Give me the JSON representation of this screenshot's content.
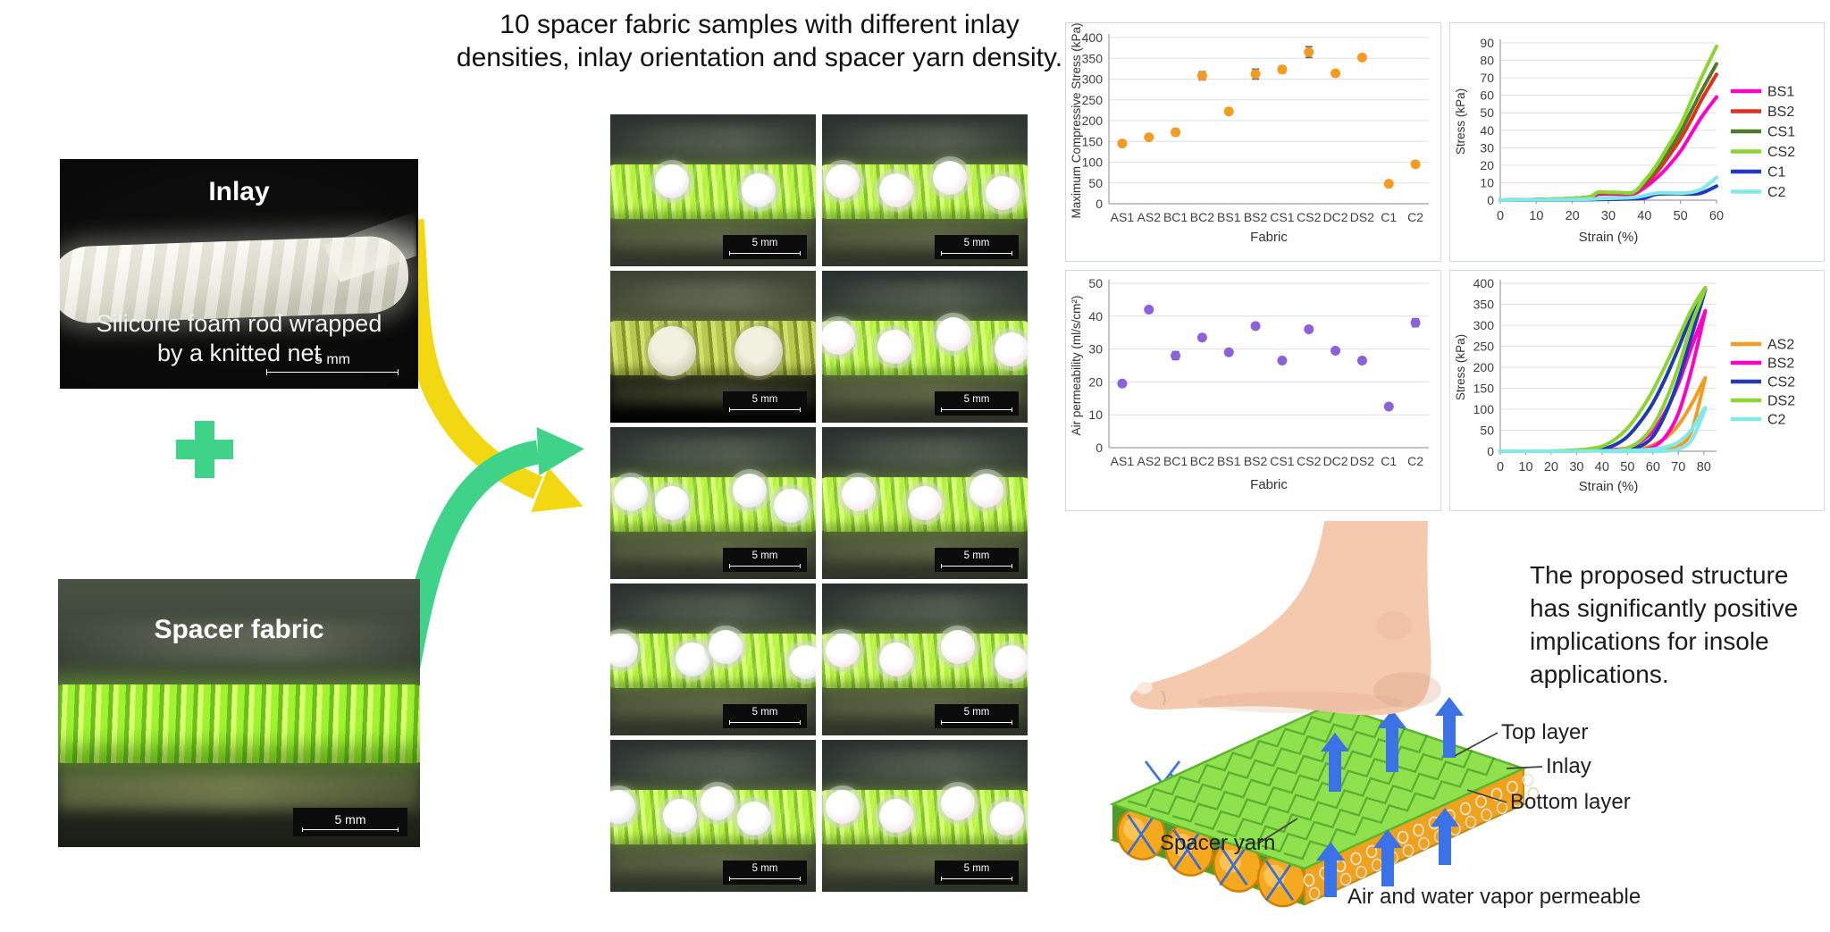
{
  "left_panel": {
    "inlay": {
      "title": "Inlay",
      "caption": "Silicone foam rod wrapped by a knitted net",
      "scale_label": "5 mm"
    },
    "spacer": {
      "title": "Spacer fabric",
      "scale_label": "5 mm"
    },
    "plus_icon": "plus"
  },
  "middle_panel": {
    "title": "10 spacer fabric samples with different inlay densities, inlay orientation and spacer yarn density.",
    "samples": [
      {
        "variant": "cross",
        "tint": "white",
        "circles": [
          0.3,
          0.72
        ],
        "scale_label": "5 mm"
      },
      {
        "variant": "cross",
        "tint": "pink",
        "circles": [
          0.1,
          0.36,
          0.62,
          0.88
        ],
        "scale_label": "5 mm"
      },
      {
        "variant": "side",
        "circles": [
          0.3,
          0.72
        ],
        "scale_label": "5 mm"
      },
      {
        "variant": "cross",
        "tint": "pink",
        "circles": [
          0.08,
          0.35,
          0.64,
          0.92
        ],
        "scale_label": "5 mm"
      },
      {
        "variant": "cross",
        "tint": "white",
        "circles": [
          0.1,
          0.3,
          0.68,
          0.88
        ],
        "scale_label": "5 mm"
      },
      {
        "variant": "cross",
        "tint": "pink",
        "circles": [
          0.18,
          0.5,
          0.8
        ],
        "scale_label": "5 mm"
      },
      {
        "variant": "cross",
        "tint": "white",
        "circles": [
          0.05,
          0.4,
          0.56,
          0.95
        ],
        "scale_label": "5 mm"
      },
      {
        "variant": "cross",
        "tint": "pink",
        "circles": [
          0.1,
          0.36,
          0.66,
          0.92
        ],
        "scale_label": "5 mm"
      },
      {
        "variant": "cross",
        "tint": "white",
        "circles": [
          0.04,
          0.34,
          0.52,
          0.7
        ],
        "scale_label": "5 mm"
      },
      {
        "variant": "cross",
        "tint": "pink",
        "circles": [
          0.1,
          0.36,
          0.66,
          0.9
        ],
        "scale_label": "5 mm"
      }
    ]
  },
  "chart_data": [
    {
      "type": "scatter",
      "ylabel": "Maximum Compressive Stress (kPa)",
      "xlabel": "Fabric",
      "ylim": [
        0,
        400
      ],
      "ytick": 50,
      "grid": true,
      "categories": [
        "AS1",
        "AS2",
        "BC1",
        "BC2",
        "BS1",
        "BS2",
        "CS1",
        "CS2",
        "DC2",
        "DS2",
        "C1",
        "C2"
      ],
      "values": [
        145,
        160,
        172,
        308,
        222,
        312,
        323,
        365,
        314,
        352,
        48,
        95
      ],
      "errors": [
        5,
        4,
        8,
        10,
        5,
        12,
        8,
        13,
        4,
        6,
        3,
        4
      ],
      "marker_color": "#f59b22",
      "error_color": "#5a6570"
    },
    {
      "type": "line",
      "ylabel": "Stress (kPa)",
      "xlabel": "Strain (%)",
      "ylim": [
        0,
        90
      ],
      "ytick": 10,
      "xlim": [
        0,
        60
      ],
      "xticks": [
        0,
        10,
        20,
        30,
        40,
        50,
        60
      ],
      "grid": true,
      "legend_position": "right",
      "x": [
        0,
        10,
        20,
        25,
        27,
        30,
        33,
        37,
        40,
        43,
        46,
        50,
        53,
        56,
        60
      ],
      "series": [
        {
          "name": "BS1",
          "color": "#ff00c8",
          "values": [
            0,
            0.3,
            0.8,
            1.5,
            3.2,
            3.5,
            3.4,
            3.6,
            7,
            12,
            18,
            28,
            38,
            48,
            59
          ]
        },
        {
          "name": "BS2",
          "color": "#e1301e",
          "values": [
            0,
            0.3,
            1,
            2,
            4,
            4.2,
            4,
            4.2,
            9,
            15,
            23,
            35,
            46,
            58,
            72
          ]
        },
        {
          "name": "CS1",
          "color": "#4e7b28",
          "values": [
            0,
            0.3,
            1,
            2,
            4.3,
            4.3,
            4.2,
            4.4,
            10,
            17,
            26,
            39,
            51,
            63,
            78
          ]
        },
        {
          "name": "CS2",
          "color": "#8cd42f",
          "values": [
            0,
            0.3,
            1,
            2,
            4.5,
            4.5,
            4.4,
            4.6,
            11,
            19,
            29,
            43,
            57,
            71,
            88
          ]
        },
        {
          "name": "C1",
          "color": "#2038c8",
          "values": [
            0,
            0.1,
            0.2,
            0.3,
            0.4,
            0.5,
            0.6,
            0.8,
            1.2,
            3.3,
            3.7,
            3.7,
            3.5,
            4.2,
            8
          ]
        },
        {
          "name": "C2",
          "color": "#82e9e9",
          "values": [
            0,
            0.2,
            0.4,
            0.6,
            0.8,
            1,
            1.2,
            1.6,
            2.6,
            4,
            4.2,
            4.1,
            4.5,
            6.5,
            13
          ]
        }
      ]
    },
    {
      "type": "scatter",
      "ylabel": "Air permeability (ml/s/cm²)",
      "xlabel": "Fabric",
      "ylim": [
        0,
        50
      ],
      "ytick": 10,
      "grid": true,
      "categories": [
        "AS1",
        "AS2",
        "BC1",
        "BC2",
        "BS1",
        "BS2",
        "CS1",
        "CS2",
        "DC2",
        "DS2",
        "C1",
        "C2"
      ],
      "values": [
        19.5,
        42,
        28,
        33.5,
        29,
        37,
        26.5,
        36,
        29.5,
        26.5,
        12.5,
        38
      ],
      "errors": [
        0.4,
        0.5,
        1.2,
        0.6,
        0.5,
        0.5,
        0.5,
        0.8,
        0.5,
        0.5,
        0.4,
        1.2
      ],
      "marker_color": "#8b62d9",
      "error_color": "#5a6570"
    },
    {
      "type": "line",
      "ylabel": "Stress (kPa)",
      "xlabel": "Strain (%)",
      "ylim": [
        0,
        400
      ],
      "ytick": 50,
      "xlim": [
        0,
        85
      ],
      "xticks": [
        0,
        10,
        20,
        30,
        40,
        50,
        60,
        70,
        80
      ],
      "grid": true,
      "legend_position": "right",
      "x": [
        0,
        10,
        20,
        30,
        35,
        40,
        45,
        50,
        55,
        60,
        65,
        70,
        75,
        80
      ],
      "unload_x": [
        40,
        45,
        50,
        55,
        60,
        65,
        70,
        75,
        80
      ],
      "series": [
        {
          "name": "AS2",
          "color": "#f59b22",
          "values": [
            0,
            0,
            0,
            0.5,
            1,
            1.5,
            2,
            3,
            6,
            15,
            32,
            62,
            110,
            168
          ],
          "unload": [
            0,
            0,
            0,
            0,
            0.5,
            3,
            12,
            45,
            160
          ]
        },
        {
          "name": "BS2",
          "color": "#ff00c8",
          "values": [
            0,
            0,
            0,
            1,
            1.5,
            2,
            4,
            8,
            22,
            48,
            95,
            160,
            245,
            325
          ],
          "unload": [
            0,
            0,
            1,
            3,
            10,
            35,
            90,
            190,
            318
          ]
        },
        {
          "name": "CS2",
          "color": "#1f3bb3",
          "values": [
            0,
            0,
            0,
            1.5,
            2.5,
            5,
            15,
            35,
            70,
            115,
            175,
            245,
            320,
            380
          ],
          "unload": [
            0,
            1,
            4,
            12,
            35,
            90,
            170,
            270,
            372
          ]
        },
        {
          "name": "DS2",
          "color": "#8cd42f",
          "values": [
            0,
            0,
            0.5,
            3,
            6,
            12,
            28,
            55,
            95,
            145,
            205,
            270,
            335,
            385
          ],
          "unload": [
            0,
            2,
            8,
            25,
            60,
            120,
            200,
            300,
            378
          ]
        },
        {
          "name": "C2",
          "color": "#82e9e9",
          "values": [
            0,
            0,
            0,
            0.3,
            0.5,
            1,
            1.5,
            2,
            3,
            5,
            10,
            22,
            50,
            100
          ],
          "unload": [
            0,
            0,
            0,
            0,
            0,
            0.5,
            5,
            25,
            92
          ]
        }
      ]
    }
  ],
  "right_panel": {
    "caption": "The proposed structure has significantly positive implications for insole applications.",
    "labels": {
      "top_layer": "Top layer",
      "inlay": "Inlay",
      "bottom_layer": "Bottom layer",
      "spacer_yarn": "Spacer yarn",
      "permeable": "Air and water vapor permeable"
    }
  },
  "colors": {
    "arrow_yellow": "#f2d713",
    "arrow_green": "#3ed389",
    "plus_green": "#3ed389",
    "arrow_blue": "#3b72e8",
    "sheet_green": "#8fe24d",
    "inlay_orange": "#f6a91e",
    "scatter_orange": "#f59b22",
    "scatter_purple": "#8b62d9"
  }
}
